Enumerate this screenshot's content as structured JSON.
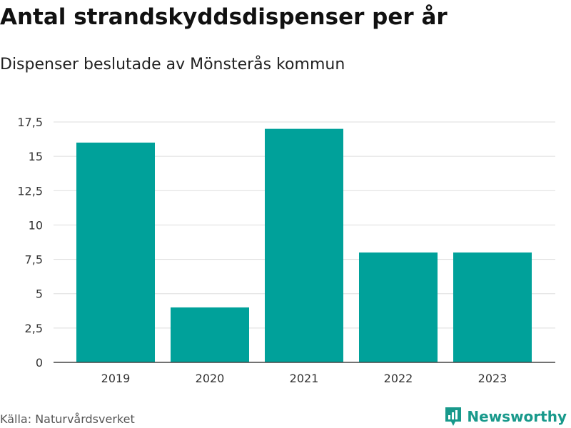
{
  "header": {
    "title": "Antal strandskyddsdispenser per år",
    "subtitle": "Dispenser beslutade av Mönsterås kommun"
  },
  "footer": {
    "source": "Källa: Naturvårdsverket",
    "brand": "Newsworthy",
    "brand_icon": "newsworthy-logo-icon"
  },
  "colors": {
    "bar": "#00a19a",
    "grid": "#dddddd",
    "axis": "#444444",
    "brand": "#18998b"
  },
  "chart_data": {
    "type": "bar",
    "title": "Antal strandskyddsdispenser per år",
    "subtitle": "Dispenser beslutade av Mönsterås kommun",
    "xlabel": "",
    "ylabel": "",
    "categories": [
      "2019",
      "2020",
      "2021",
      "2022",
      "2023"
    ],
    "values": [
      16,
      4,
      17,
      8,
      8
    ],
    "ylim": [
      0,
      17.5
    ],
    "yticks": [
      0,
      2.5,
      5,
      7.5,
      10,
      12.5,
      15,
      17.5
    ],
    "ytick_labels": [
      "0",
      "2,5",
      "5",
      "7,5",
      "10",
      "12,5",
      "15",
      "17,5"
    ],
    "grid": true,
    "legend": "none"
  }
}
